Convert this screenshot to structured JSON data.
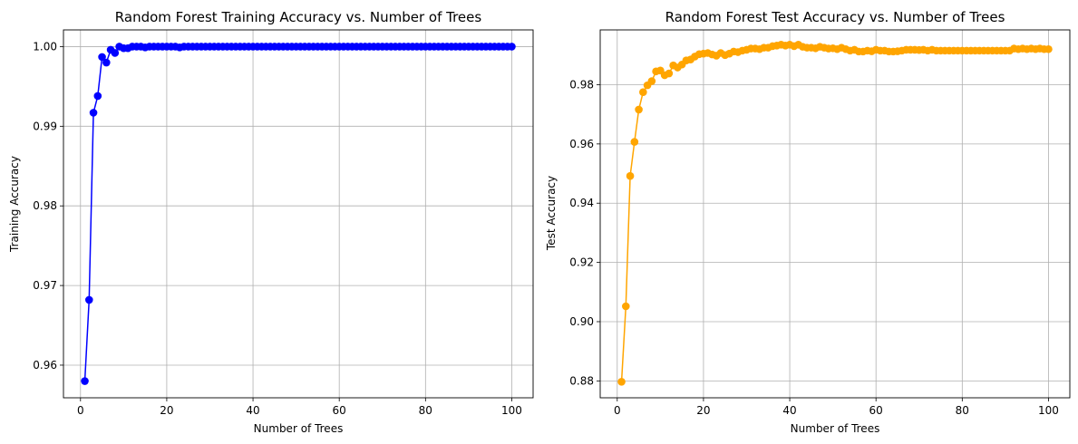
{
  "chart_data": [
    {
      "type": "line",
      "title": "Random Forest Training Accuracy vs. Number of Trees",
      "xlabel": "Number of Trees",
      "ylabel": "Training Accuracy",
      "xlim": [
        -3.95,
        104.95
      ],
      "ylim": [
        0.9559,
        1.0021
      ],
      "xticks": [
        0,
        20,
        40,
        60,
        80,
        100
      ],
      "xtick_labels": [
        "0",
        "20",
        "40",
        "60",
        "80",
        "100"
      ],
      "yticks": [
        0.96,
        0.97,
        0.98,
        0.99,
        1.0
      ],
      "ytick_labels": [
        "0.96",
        "0.97",
        "0.98",
        "0.99",
        "1.00"
      ],
      "grid": true,
      "markers": "circle",
      "color": "#0000ff",
      "series": [
        {
          "x": [
            1,
            2,
            3,
            4,
            5,
            6,
            7,
            8,
            9,
            10,
            11,
            12,
            13,
            14,
            15,
            16,
            17,
            18,
            19,
            20,
            21,
            22,
            23,
            24,
            25,
            26,
            27,
            28,
            29,
            30,
            31,
            32,
            33,
            34,
            35,
            36,
            37,
            38,
            39,
            40,
            41,
            42,
            43,
            44,
            45,
            46,
            47,
            48,
            49,
            50,
            51,
            52,
            53,
            54,
            55,
            56,
            57,
            58,
            59,
            60,
            61,
            62,
            63,
            64,
            65,
            66,
            67,
            68,
            69,
            70,
            71,
            72,
            73,
            74,
            75,
            76,
            77,
            78,
            79,
            80,
            81,
            82,
            83,
            84,
            85,
            86,
            87,
            88,
            89,
            90,
            91,
            92,
            93,
            94,
            95,
            96,
            97,
            98,
            99,
            100
          ],
          "values": [
            0.958,
            0.9682,
            0.9917,
            0.9938,
            0.9987,
            0.998,
            0.9996,
            0.9992,
            1.0,
            0.9998,
            0.9998,
            1.0,
            1.0,
            1.0,
            0.9999,
            1.0,
            1.0,
            1.0,
            1.0,
            1.0,
            1.0,
            1.0,
            0.9999,
            1.0,
            1.0,
            1.0,
            1.0,
            1.0,
            1.0,
            1.0,
            1.0,
            1.0,
            1.0,
            1.0,
            1.0,
            1.0,
            1.0,
            1.0,
            1.0,
            1.0,
            1.0,
            1.0,
            1.0,
            1.0,
            1.0,
            1.0,
            1.0,
            1.0,
            1.0,
            1.0,
            1.0,
            1.0,
            1.0,
            1.0,
            1.0,
            1.0,
            1.0,
            1.0,
            1.0,
            1.0,
            1.0,
            1.0,
            1.0,
            1.0,
            1.0,
            1.0,
            1.0,
            1.0,
            1.0,
            1.0,
            1.0,
            1.0,
            1.0,
            1.0,
            1.0,
            1.0,
            1.0,
            1.0,
            1.0,
            1.0,
            1.0,
            1.0,
            1.0,
            1.0,
            1.0,
            1.0,
            1.0,
            1.0,
            1.0,
            1.0,
            1.0,
            1.0,
            1.0,
            1.0,
            1.0,
            1.0,
            1.0,
            1.0,
            1.0,
            1.0
          ]
        }
      ]
    },
    {
      "type": "line",
      "title": "Random Forest Test Accuracy vs. Number of Trees",
      "xlabel": "Number of Trees",
      "ylabel": "Test Accuracy",
      "xlim": [
        -3.95,
        104.95
      ],
      "ylim": [
        0.8743,
        0.9985
      ],
      "xticks": [
        0,
        20,
        40,
        60,
        80,
        100
      ],
      "xtick_labels": [
        "0",
        "20",
        "40",
        "60",
        "80",
        "100"
      ],
      "yticks": [
        0.88,
        0.9,
        0.92,
        0.94,
        0.96,
        0.98
      ],
      "ytick_labels": [
        "0.88",
        "0.90",
        "0.92",
        "0.94",
        "0.96",
        "0.98"
      ],
      "grid": true,
      "markers": "circle",
      "color": "#ffa500",
      "series": [
        {
          "x": [
            1,
            2,
            3,
            4,
            5,
            6,
            7,
            8,
            9,
            10,
            11,
            12,
            13,
            14,
            15,
            16,
            17,
            18,
            19,
            20,
            21,
            22,
            23,
            24,
            25,
            26,
            27,
            28,
            29,
            30,
            31,
            32,
            33,
            34,
            35,
            36,
            37,
            38,
            39,
            40,
            41,
            42,
            43,
            44,
            45,
            46,
            47,
            48,
            49,
            50,
            51,
            52,
            53,
            54,
            55,
            56,
            57,
            58,
            59,
            60,
            61,
            62,
            63,
            64,
            65,
            66,
            67,
            68,
            69,
            70,
            71,
            72,
            73,
            74,
            75,
            76,
            77,
            78,
            79,
            80,
            81,
            82,
            83,
            84,
            85,
            86,
            87,
            88,
            89,
            90,
            91,
            92,
            93,
            94,
            95,
            96,
            97,
            98,
            99,
            100
          ],
          "values": [
            0.8797,
            0.9052,
            0.9492,
            0.9607,
            0.9716,
            0.9775,
            0.9798,
            0.9812,
            0.9845,
            0.9848,
            0.9832,
            0.9838,
            0.9865,
            0.9858,
            0.9868,
            0.9882,
            0.9885,
            0.9895,
            0.9903,
            0.9905,
            0.9907,
            0.9902,
            0.9898,
            0.9907,
            0.99,
            0.9905,
            0.9912,
            0.991,
            0.9915,
            0.9918,
            0.9922,
            0.9922,
            0.992,
            0.9925,
            0.9925,
            0.993,
            0.9932,
            0.9935,
            0.9932,
            0.9935,
            0.993,
            0.9935,
            0.9928,
            0.9925,
            0.9925,
            0.9923,
            0.9928,
            0.9925,
            0.9922,
            0.9923,
            0.992,
            0.9925,
            0.992,
            0.9915,
            0.9918,
            0.9912,
            0.9912,
            0.9915,
            0.9913,
            0.9918,
            0.9915,
            0.9915,
            0.9912,
            0.9912,
            0.9913,
            0.9915,
            0.9918,
            0.9918,
            0.9918,
            0.9917,
            0.9918,
            0.9915,
            0.9918,
            0.9915,
            0.9915,
            0.9915,
            0.9915,
            0.9915,
            0.9915,
            0.9915,
            0.9915,
            0.9915,
            0.9915,
            0.9915,
            0.9915,
            0.9915,
            0.9915,
            0.9915,
            0.9915,
            0.9915,
            0.9915,
            0.9922,
            0.992,
            0.9922,
            0.992,
            0.9922,
            0.992,
            0.9922,
            0.992,
            0.992
          ]
        }
      ]
    }
  ]
}
